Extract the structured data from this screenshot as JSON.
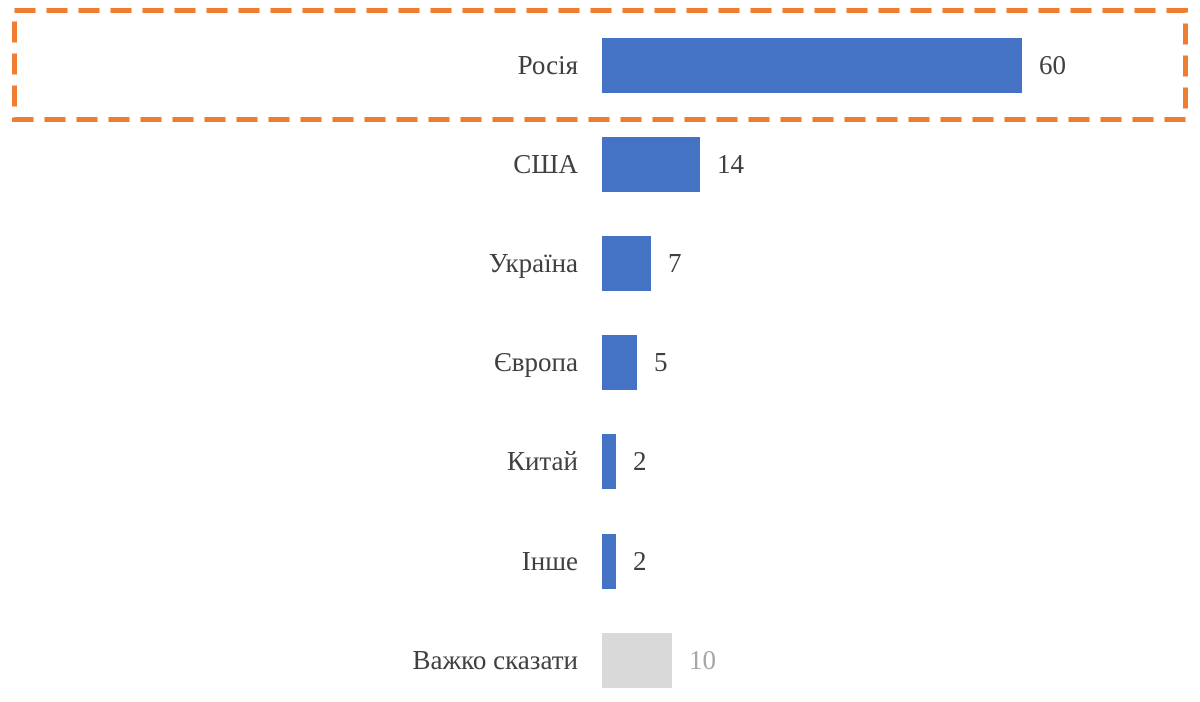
{
  "chart_data": {
    "type": "bar",
    "orientation": "horizontal",
    "title": "",
    "categories": [
      "Росія",
      "США",
      "Україна",
      "Європа",
      "Китай",
      "Інше",
      "Важко сказати"
    ],
    "values": [
      60,
      14,
      7,
      5,
      2,
      2,
      10
    ],
    "data_labels": [
      60,
      14,
      7,
      5,
      2,
      2,
      10
    ],
    "xlim": [
      0,
      60
    ],
    "grid": false,
    "legend": false,
    "axes_visible": false,
    "bar_colors": [
      "#4472C4",
      "#4472C4",
      "#4472C4",
      "#4472C4",
      "#4472C4",
      "#4472C4",
      "#D9D9D9"
    ],
    "value_label_colors": [
      "#404040",
      "#404040",
      "#404040",
      "#404040",
      "#404040",
      "#404040",
      "#A6A6A6"
    ],
    "highlight": {
      "category": "Росія",
      "shape": "dashed-rectangle",
      "color": "#ED7D31"
    }
  },
  "colors": {
    "bar_primary": "#4472C4",
    "bar_muted": "#D9D9D9",
    "text": "#404040",
    "text_muted": "#A6A6A6",
    "highlight": "#ED7D31",
    "background": "#FFFFFF"
  }
}
